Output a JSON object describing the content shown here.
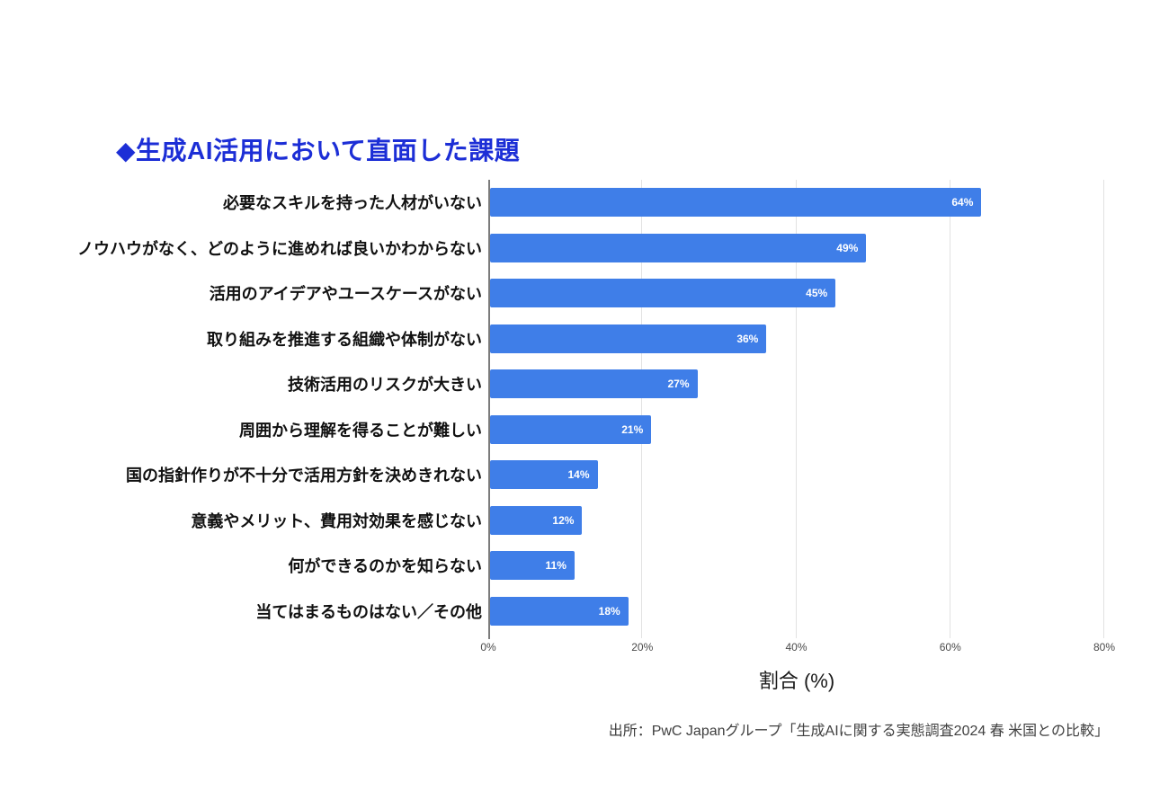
{
  "title": "◆生成AI活用において直面した課題",
  "source": "出所：PwC Japanグループ「生成AIに関する実態調査2024 春 米国との比較」",
  "colors": {
    "bar": "#3f7ee8",
    "title": "#1c2ed6",
    "axis_line": "#7b7b7b",
    "gridline": "#e2e2e2",
    "value_label": "#ffffff"
  },
  "chart_data": {
    "type": "bar",
    "orientation": "horizontal",
    "title": "◆生成AI活用において直面した課題",
    "categories": [
      "必要なスキルを持った人材がいない",
      "ノウハウがなく、どのように進めれば良いかわからない",
      "活用のアイデアやユースケースがない",
      "取り組みを推進する組織や体制がない",
      "技術活用のリスクが大きい",
      "周囲から理解を得ることが難しい",
      "国の指針作りが不十分で活用方針を決めきれない",
      "意義やメリット、費用対効果を感じない",
      "何ができるのかを知らない",
      "当てはまるものはない／その他"
    ],
    "values": [
      64,
      49,
      45,
      36,
      27,
      21,
      14,
      12,
      11,
      18
    ],
    "value_labels": [
      "64%",
      "49%",
      "45%",
      "36%",
      "27%",
      "21%",
      "14%",
      "12%",
      "11%",
      "18%"
    ],
    "xlabel": "割合 (%)",
    "ylabel": "",
    "x_ticks": [
      "0%",
      "20%",
      "40%",
      "60%",
      "80%"
    ],
    "xlim": [
      0,
      80
    ],
    "grid": true,
    "legend": false
  }
}
